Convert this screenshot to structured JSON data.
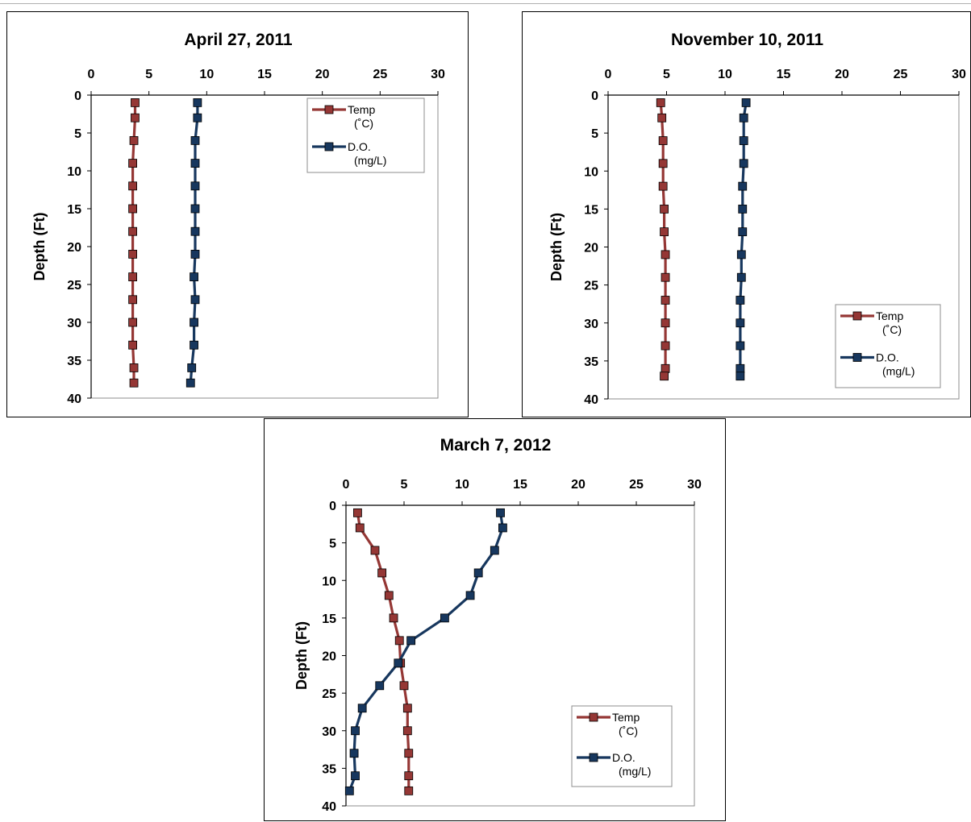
{
  "chart_data": [
    {
      "type": "line",
      "title": "April 27, 2011",
      "xlabel": "",
      "ylabel": "Depth (Ft)",
      "xlim": [
        0,
        30
      ],
      "ylim": [
        0,
        40
      ],
      "x_ticks": [
        "0",
        "5",
        "10",
        "15",
        "20",
        "25",
        "30"
      ],
      "y_ticks": [
        "0",
        "5",
        "10",
        "15",
        "20",
        "25",
        "30",
        "35",
        "40"
      ],
      "y_inverted": true,
      "x_axis_position": "top",
      "grid": false,
      "legend_position": "top-right",
      "series": [
        {
          "name": "Temp (˚C)",
          "color": "#953735",
          "points": [
            [
              3.8,
              1
            ],
            [
              3.8,
              3
            ],
            [
              3.7,
              6
            ],
            [
              3.6,
              9
            ],
            [
              3.6,
              12
            ],
            [
              3.6,
              15
            ],
            [
              3.6,
              18
            ],
            [
              3.6,
              21
            ],
            [
              3.6,
              24
            ],
            [
              3.6,
              27
            ],
            [
              3.6,
              30
            ],
            [
              3.6,
              33
            ],
            [
              3.7,
              36
            ],
            [
              3.7,
              38
            ]
          ]
        },
        {
          "name": "D.O. (mg/L)",
          "color": "#17375e",
          "points": [
            [
              9.2,
              1
            ],
            [
              9.2,
              3
            ],
            [
              9.0,
              6
            ],
            [
              9.0,
              9
            ],
            [
              9.0,
              12
            ],
            [
              9.0,
              15
            ],
            [
              9.0,
              18
            ],
            [
              9.0,
              21
            ],
            [
              8.9,
              24
            ],
            [
              9.0,
              27
            ],
            [
              8.9,
              30
            ],
            [
              8.9,
              33
            ],
            [
              8.7,
              36
            ],
            [
              8.6,
              38
            ]
          ]
        }
      ]
    },
    {
      "type": "line",
      "title": "November 10, 2011",
      "xlabel": "",
      "ylabel": "Depth (Ft)",
      "xlim": [
        0,
        30
      ],
      "ylim": [
        0,
        40
      ],
      "x_ticks": [
        "0",
        "5",
        "10",
        "15",
        "20",
        "25",
        "30"
      ],
      "y_ticks": [
        "0",
        "5",
        "10",
        "15",
        "20",
        "25",
        "30",
        "35",
        "40"
      ],
      "y_inverted": true,
      "x_axis_position": "top",
      "grid": false,
      "legend_position": "bottom-right",
      "series": [
        {
          "name": "Temp (˚C)",
          "color": "#953735",
          "points": [
            [
              4.5,
              1
            ],
            [
              4.6,
              3
            ],
            [
              4.7,
              6
            ],
            [
              4.7,
              9
            ],
            [
              4.7,
              12
            ],
            [
              4.8,
              15
            ],
            [
              4.8,
              18
            ],
            [
              4.9,
              21
            ],
            [
              4.9,
              24
            ],
            [
              4.9,
              27
            ],
            [
              4.9,
              30
            ],
            [
              4.9,
              33
            ],
            [
              4.9,
              36
            ],
            [
              4.8,
              37
            ]
          ]
        },
        {
          "name": "D.O. (mg/L)",
          "color": "#17375e",
          "points": [
            [
              11.8,
              1
            ],
            [
              11.6,
              3
            ],
            [
              11.6,
              6
            ],
            [
              11.6,
              9
            ],
            [
              11.5,
              12
            ],
            [
              11.5,
              15
            ],
            [
              11.5,
              18
            ],
            [
              11.4,
              21
            ],
            [
              11.4,
              24
            ],
            [
              11.3,
              27
            ],
            [
              11.3,
              30
            ],
            [
              11.3,
              33
            ],
            [
              11.3,
              36
            ],
            [
              11.3,
              37
            ]
          ]
        }
      ]
    },
    {
      "type": "line",
      "title": "March 7, 2012",
      "xlabel": "",
      "ylabel": "Depth (Ft)",
      "xlim": [
        0,
        30
      ],
      "ylim": [
        0,
        40
      ],
      "x_ticks": [
        "0",
        "5",
        "10",
        "15",
        "20",
        "25",
        "30"
      ],
      "y_ticks": [
        "0",
        "5",
        "10",
        "15",
        "20",
        "25",
        "30",
        "35",
        "40"
      ],
      "y_inverted": true,
      "x_axis_position": "top",
      "grid": false,
      "legend_position": "bottom-right",
      "series": [
        {
          "name": "Temp (˚C)",
          "color": "#953735",
          "points": [
            [
              1.0,
              1
            ],
            [
              1.2,
              3
            ],
            [
              2.5,
              6
            ],
            [
              3.1,
              9
            ],
            [
              3.7,
              12
            ],
            [
              4.1,
              15
            ],
            [
              4.6,
              18
            ],
            [
              4.7,
              21
            ],
            [
              5.0,
              24
            ],
            [
              5.3,
              27
            ],
            [
              5.3,
              30
            ],
            [
              5.4,
              33
            ],
            [
              5.4,
              36
            ],
            [
              5.4,
              38
            ]
          ]
        },
        {
          "name": "D.O. (mg/L)",
          "color": "#17375e",
          "points": [
            [
              13.3,
              1
            ],
            [
              13.5,
              3
            ],
            [
              12.8,
              6
            ],
            [
              11.4,
              9
            ],
            [
              10.7,
              12
            ],
            [
              8.5,
              15
            ],
            [
              5.6,
              18
            ],
            [
              4.5,
              21
            ],
            [
              2.9,
              24
            ],
            [
              1.4,
              27
            ],
            [
              0.8,
              30
            ],
            [
              0.7,
              33
            ],
            [
              0.8,
              36
            ],
            [
              0.3,
              38
            ]
          ]
        }
      ]
    }
  ]
}
